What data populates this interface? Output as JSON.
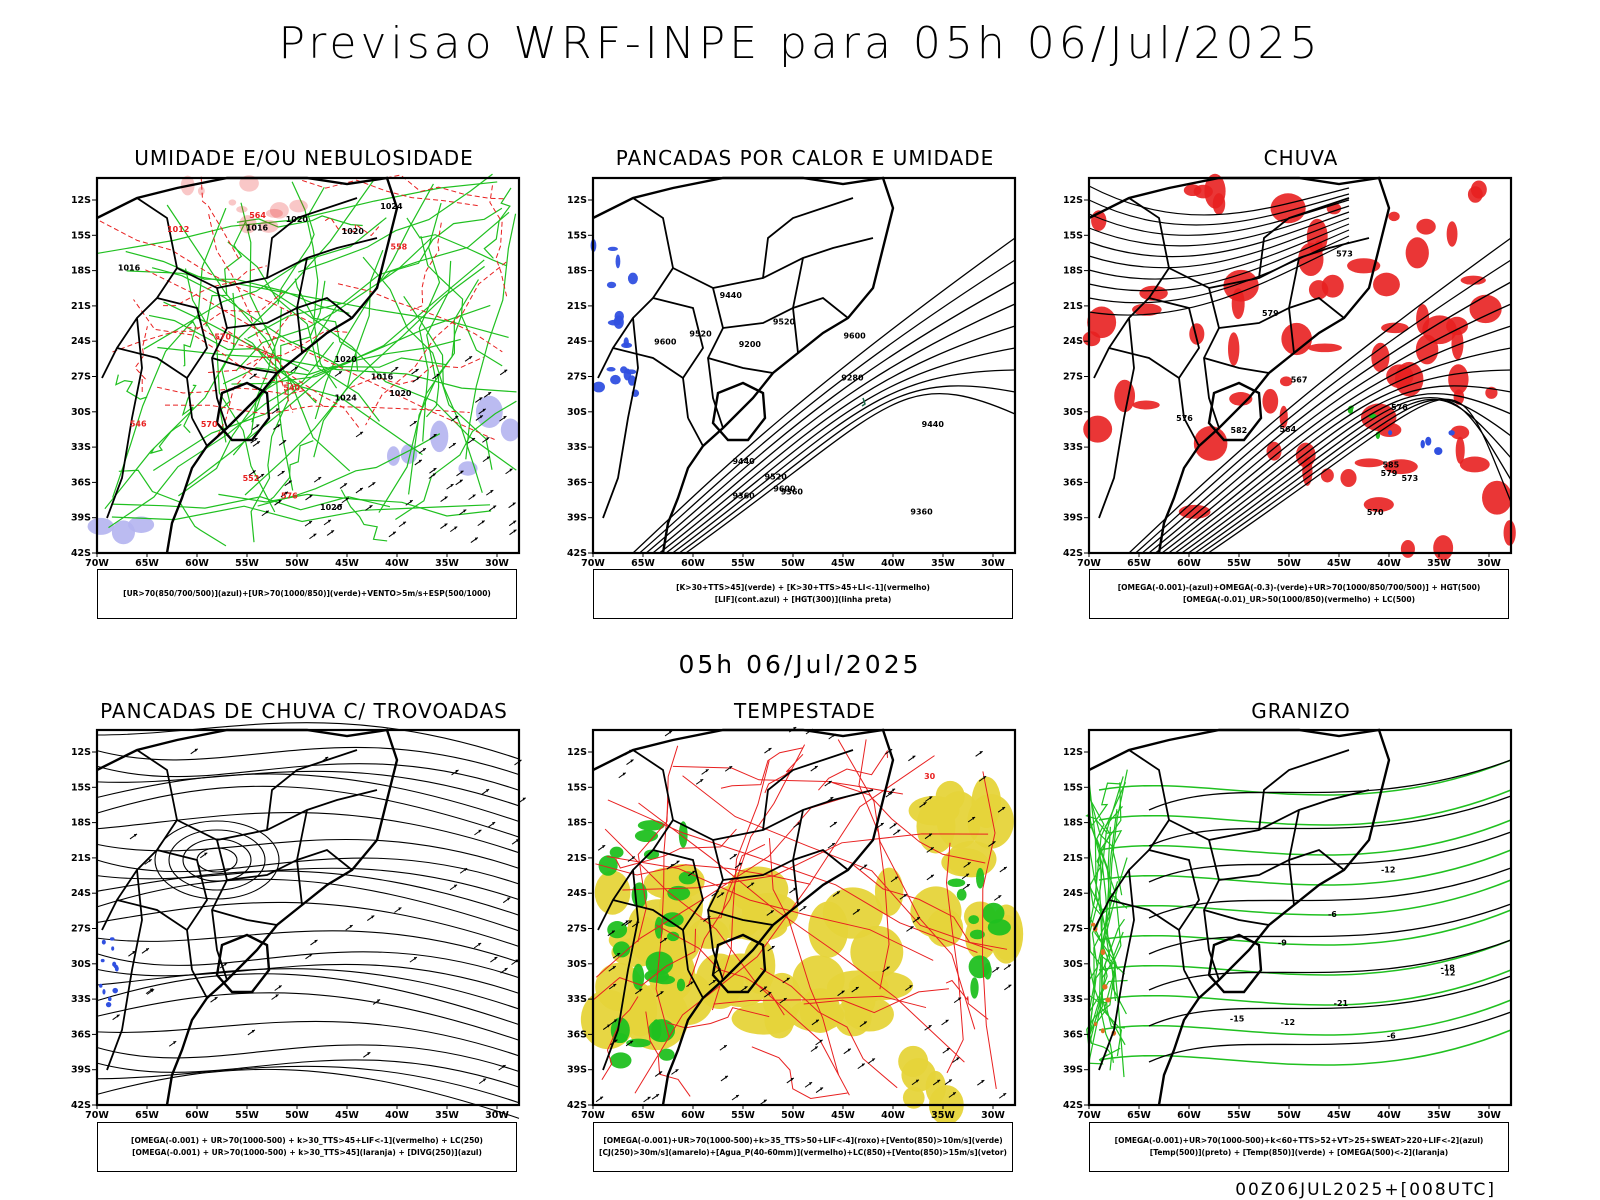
{
  "title": "Previsao WRF-INPE  para 05h 06/Jul/2025",
  "mid_date": "05h 06/Jul/2025",
  "footer": "00Z06JUL2025+[008UTC]",
  "lat_labels": [
    "12S",
    "15S",
    "18S",
    "21S",
    "24S",
    "27S",
    "30S",
    "33S",
    "36S",
    "39S",
    "42S"
  ],
  "lon_labels": [
    "70W",
    "65W",
    "60W",
    "55W",
    "50W",
    "45W",
    "40W",
    "35W",
    "30W"
  ],
  "colors": {
    "red": "#e82020",
    "green": "#20c020",
    "blue": "#3050e0",
    "yellow": "#e6d43a",
    "lavender": "#b4b4f0",
    "dark_green": "#0a8a0a"
  },
  "panels": [
    {
      "title": "UMIDADE E/OU NEBULOSIDADE",
      "legend": [
        "[UR>70(850/700/500)](azul)+[UR>70(1000/850)](verde)+VENTO>5m/s+ESP(500/1000)"
      ],
      "labels": [
        "1016",
        "1016",
        "1020",
        "1020",
        "1020",
        "1024",
        "1016",
        "1020",
        "1024",
        "1020",
        "570",
        "570",
        "564",
        "558",
        "552",
        "546",
        "540",
        "576",
        "1012"
      ]
    },
    {
      "title": "PANCADAS POR CALOR E UMIDADE",
      "legend": [
        "[K>30+TTS>45](verde) + [K>30+TTS>45+LI<-1](vermelho)",
        "[LIF](cont.azul) + [HGT(300)](linha preta)"
      ],
      "labels": [
        "9600",
        "9600",
        "9600",
        "9520",
        "9520",
        "9440",
        "9440",
        "9360",
        "9280",
        "9200",
        "9520",
        "9360",
        "9440",
        "9360"
      ]
    },
    {
      "title": "CHUVA",
      "legend": [
        "[OMEGA(-0.001)-(azul)+OMEGA(-0.3)-(verde)+UR>70(1000/850/700/500)] + HGT(500)",
        "[OMEGA(-0.01)_UR>50(1000/850)(vermelho) + LC(500)"
      ],
      "labels": [
        "585",
        "582",
        "579",
        "576",
        "573",
        "570",
        "567",
        "564",
        "576",
        "573",
        "579"
      ]
    },
    {
      "title": "PANCADAS DE CHUVA C/ TROVOADAS",
      "legend": [
        "[OMEGA(-0.001) + UR>70(1000-500) + k>30_TTS>45+LIF<-1](vermelho) + LC(250)",
        "[OMEGA(-0.001) + UR>70(1000-500) + k>30_TTS>45](laranja) + [DIVG(250)](azul)"
      ],
      "labels": []
    },
    {
      "title": "TEMPESTADE",
      "legend": [
        "[OMEGA(-0.001)+UR>70(1000-500)+k>35_TTS>50+LIF<-4](roxo)+[Vento(850)>10m/s](verde)",
        "[CJ(250)>30m/s](amarelo)+[Agua_P(40-60mm)](vermelho)+LC(850)+[Vento(850)>15m/s](vetor)"
      ],
      "labels": [
        "30"
      ]
    },
    {
      "title": "GRANIZO",
      "legend": [
        "[OMEGA(-0.001)+UR>70(1000-500)+k<60+TTS>52+VT>25+SWEAT>220+LIF<-2](azul)",
        "[Temp(500)](preto) + [Temp(850)](verde) + [OMEGA(500)<-2](laranja)"
      ],
      "labels": [
        "-6",
        "-12",
        "-9",
        "-15",
        "-12",
        "-21",
        "-18",
        "-12",
        "-6"
      ]
    }
  ]
}
